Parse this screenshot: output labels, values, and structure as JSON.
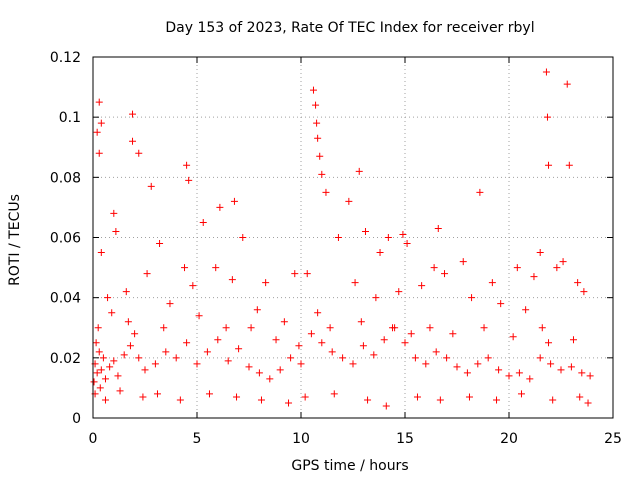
{
  "chart_data": {
    "type": "scatter",
    "title": "Day 153 of 2023, Rate Of TEC Index for receiver rbyl",
    "xlabel": "GPS time / hours",
    "ylabel": "ROTI / TECUs",
    "xlim": [
      0,
      25
    ],
    "ylim": [
      0,
      0.12
    ],
    "xticks": [
      0,
      5,
      10,
      15,
      20,
      25
    ],
    "xtick_labels": [
      "0",
      "5",
      "10",
      "15",
      "20",
      "25"
    ],
    "yticks": [
      0,
      0.02,
      0.04,
      0.06,
      0.08,
      0.1,
      0.12
    ],
    "ytick_labels": [
      "0",
      "0.02",
      "0.04",
      "0.06",
      "0.08",
      "0.1",
      "0.12"
    ],
    "grid": true,
    "marker": "+",
    "color": "#ff0000",
    "series": [
      {
        "name": "ROTI",
        "x": [
          0.05,
          0.1,
          0.15,
          0.2,
          0.25,
          0.3,
          0.35,
          0.4,
          0.5,
          0.6,
          0.8,
          1.0,
          1.2,
          1.5,
          1.8,
          2.0,
          2.2,
          2.5,
          3.0,
          3.5,
          4.0,
          4.5,
          5.0,
          5.5,
          6.0,
          6.5,
          7.0,
          7.5,
          8.0,
          8.5,
          9.0,
          9.5,
          10.0,
          10.5,
          10.8,
          11.0,
          11.5,
          12.0,
          12.5,
          13.0,
          13.5,
          14.0,
          14.5,
          15.0,
          15.5,
          16.0,
          16.5,
          17.0,
          17.5,
          18.0,
          18.5,
          19.0,
          19.5,
          20.0,
          20.5,
          21.0,
          21.5,
          21.9,
          22.0,
          22.5,
          23.0,
          23.5,
          23.9,
          0.2,
          0.3,
          0.3,
          0.4,
          1.9,
          1.9,
          2.2,
          2.8,
          4.5,
          4.6,
          6.1,
          6.8,
          10.6,
          10.7,
          10.75,
          10.8,
          10.9,
          11.0,
          11.2,
          12.3,
          12.8,
          13.1,
          14.2,
          14.9,
          16.6,
          18.6,
          21.8,
          21.85,
          21.9,
          22.8,
          22.9,
          0.4,
          1.0,
          1.1,
          3.2,
          4.4,
          5.3,
          7.2,
          8.3,
          9.7,
          11.8,
          13.8,
          15.1,
          16.4,
          17.8,
          19.2,
          20.4,
          21.5,
          22.6,
          23.3,
          0.7,
          1.6,
          2.6,
          3.7,
          4.8,
          5.9,
          6.7,
          7.9,
          9.2,
          10.3,
          12.6,
          13.6,
          14.7,
          15.8,
          16.9,
          18.2,
          19.6,
          20.8,
          21.2,
          22.3,
          23.6,
          0.9,
          1.7,
          3.4,
          5.1,
          6.4,
          7.6,
          8.8,
          9.9,
          11.4,
          12.9,
          14.4,
          15.3,
          16.2,
          17.3,
          18.8,
          20.2,
          21.6,
          23.1,
          0.1,
          0.6,
          1.3,
          2.4,
          3.1,
          4.2,
          5.6,
          6.9,
          8.1,
          9.4,
          10.2,
          11.6,
          13.2,
          14.1,
          15.6,
          16.7,
          18.1,
          19.4,
          20.6,
          22.1,
          23.4,
          23.8
        ],
        "y": [
          0.012,
          0.018,
          0.025,
          0.015,
          0.03,
          0.022,
          0.01,
          0.016,
          0.02,
          0.013,
          0.017,
          0.019,
          0.014,
          0.021,
          0.024,
          0.028,
          0.02,
          0.016,
          0.018,
          0.022,
          0.02,
          0.025,
          0.018,
          0.022,
          0.026,
          0.019,
          0.023,
          0.017,
          0.015,
          0.013,
          0.016,
          0.02,
          0.018,
          0.028,
          0.035,
          0.025,
          0.022,
          0.02,
          0.018,
          0.024,
          0.021,
          0.026,
          0.03,
          0.025,
          0.02,
          0.018,
          0.022,
          0.02,
          0.017,
          0.015,
          0.018,
          0.02,
          0.016,
          0.014,
          0.015,
          0.013,
          0.02,
          0.025,
          0.018,
          0.016,
          0.017,
          0.015,
          0.014,
          0.095,
          0.105,
          0.088,
          0.098,
          0.101,
          0.092,
          0.088,
          0.077,
          0.084,
          0.079,
          0.07,
          0.072,
          0.109,
          0.104,
          0.098,
          0.093,
          0.087,
          0.081,
          0.075,
          0.072,
          0.082,
          0.062,
          0.06,
          0.061,
          0.063,
          0.075,
          0.115,
          0.1,
          0.084,
          0.111,
          0.084,
          0.055,
          0.068,
          0.062,
          0.058,
          0.05,
          0.065,
          0.06,
          0.045,
          0.048,
          0.06,
          0.055,
          0.058,
          0.05,
          0.052,
          0.045,
          0.05,
          0.055,
          0.052,
          0.045,
          0.04,
          0.042,
          0.048,
          0.038,
          0.044,
          0.05,
          0.046,
          0.036,
          0.032,
          0.048,
          0.045,
          0.04,
          0.042,
          0.044,
          0.048,
          0.04,
          0.038,
          0.036,
          0.047,
          0.05,
          0.042,
          0.035,
          0.032,
          0.03,
          0.034,
          0.03,
          0.03,
          0.026,
          0.024,
          0.03,
          0.032,
          0.03,
          0.028,
          0.03,
          0.028,
          0.03,
          0.027,
          0.03,
          0.026,
          0.008,
          0.006,
          0.009,
          0.007,
          0.008,
          0.006,
          0.008,
          0.007,
          0.006,
          0.005,
          0.007,
          0.008,
          0.006,
          0.004,
          0.007,
          0.006,
          0.007,
          0.006,
          0.008,
          0.006,
          0.007,
          0.005
        ]
      }
    ]
  }
}
